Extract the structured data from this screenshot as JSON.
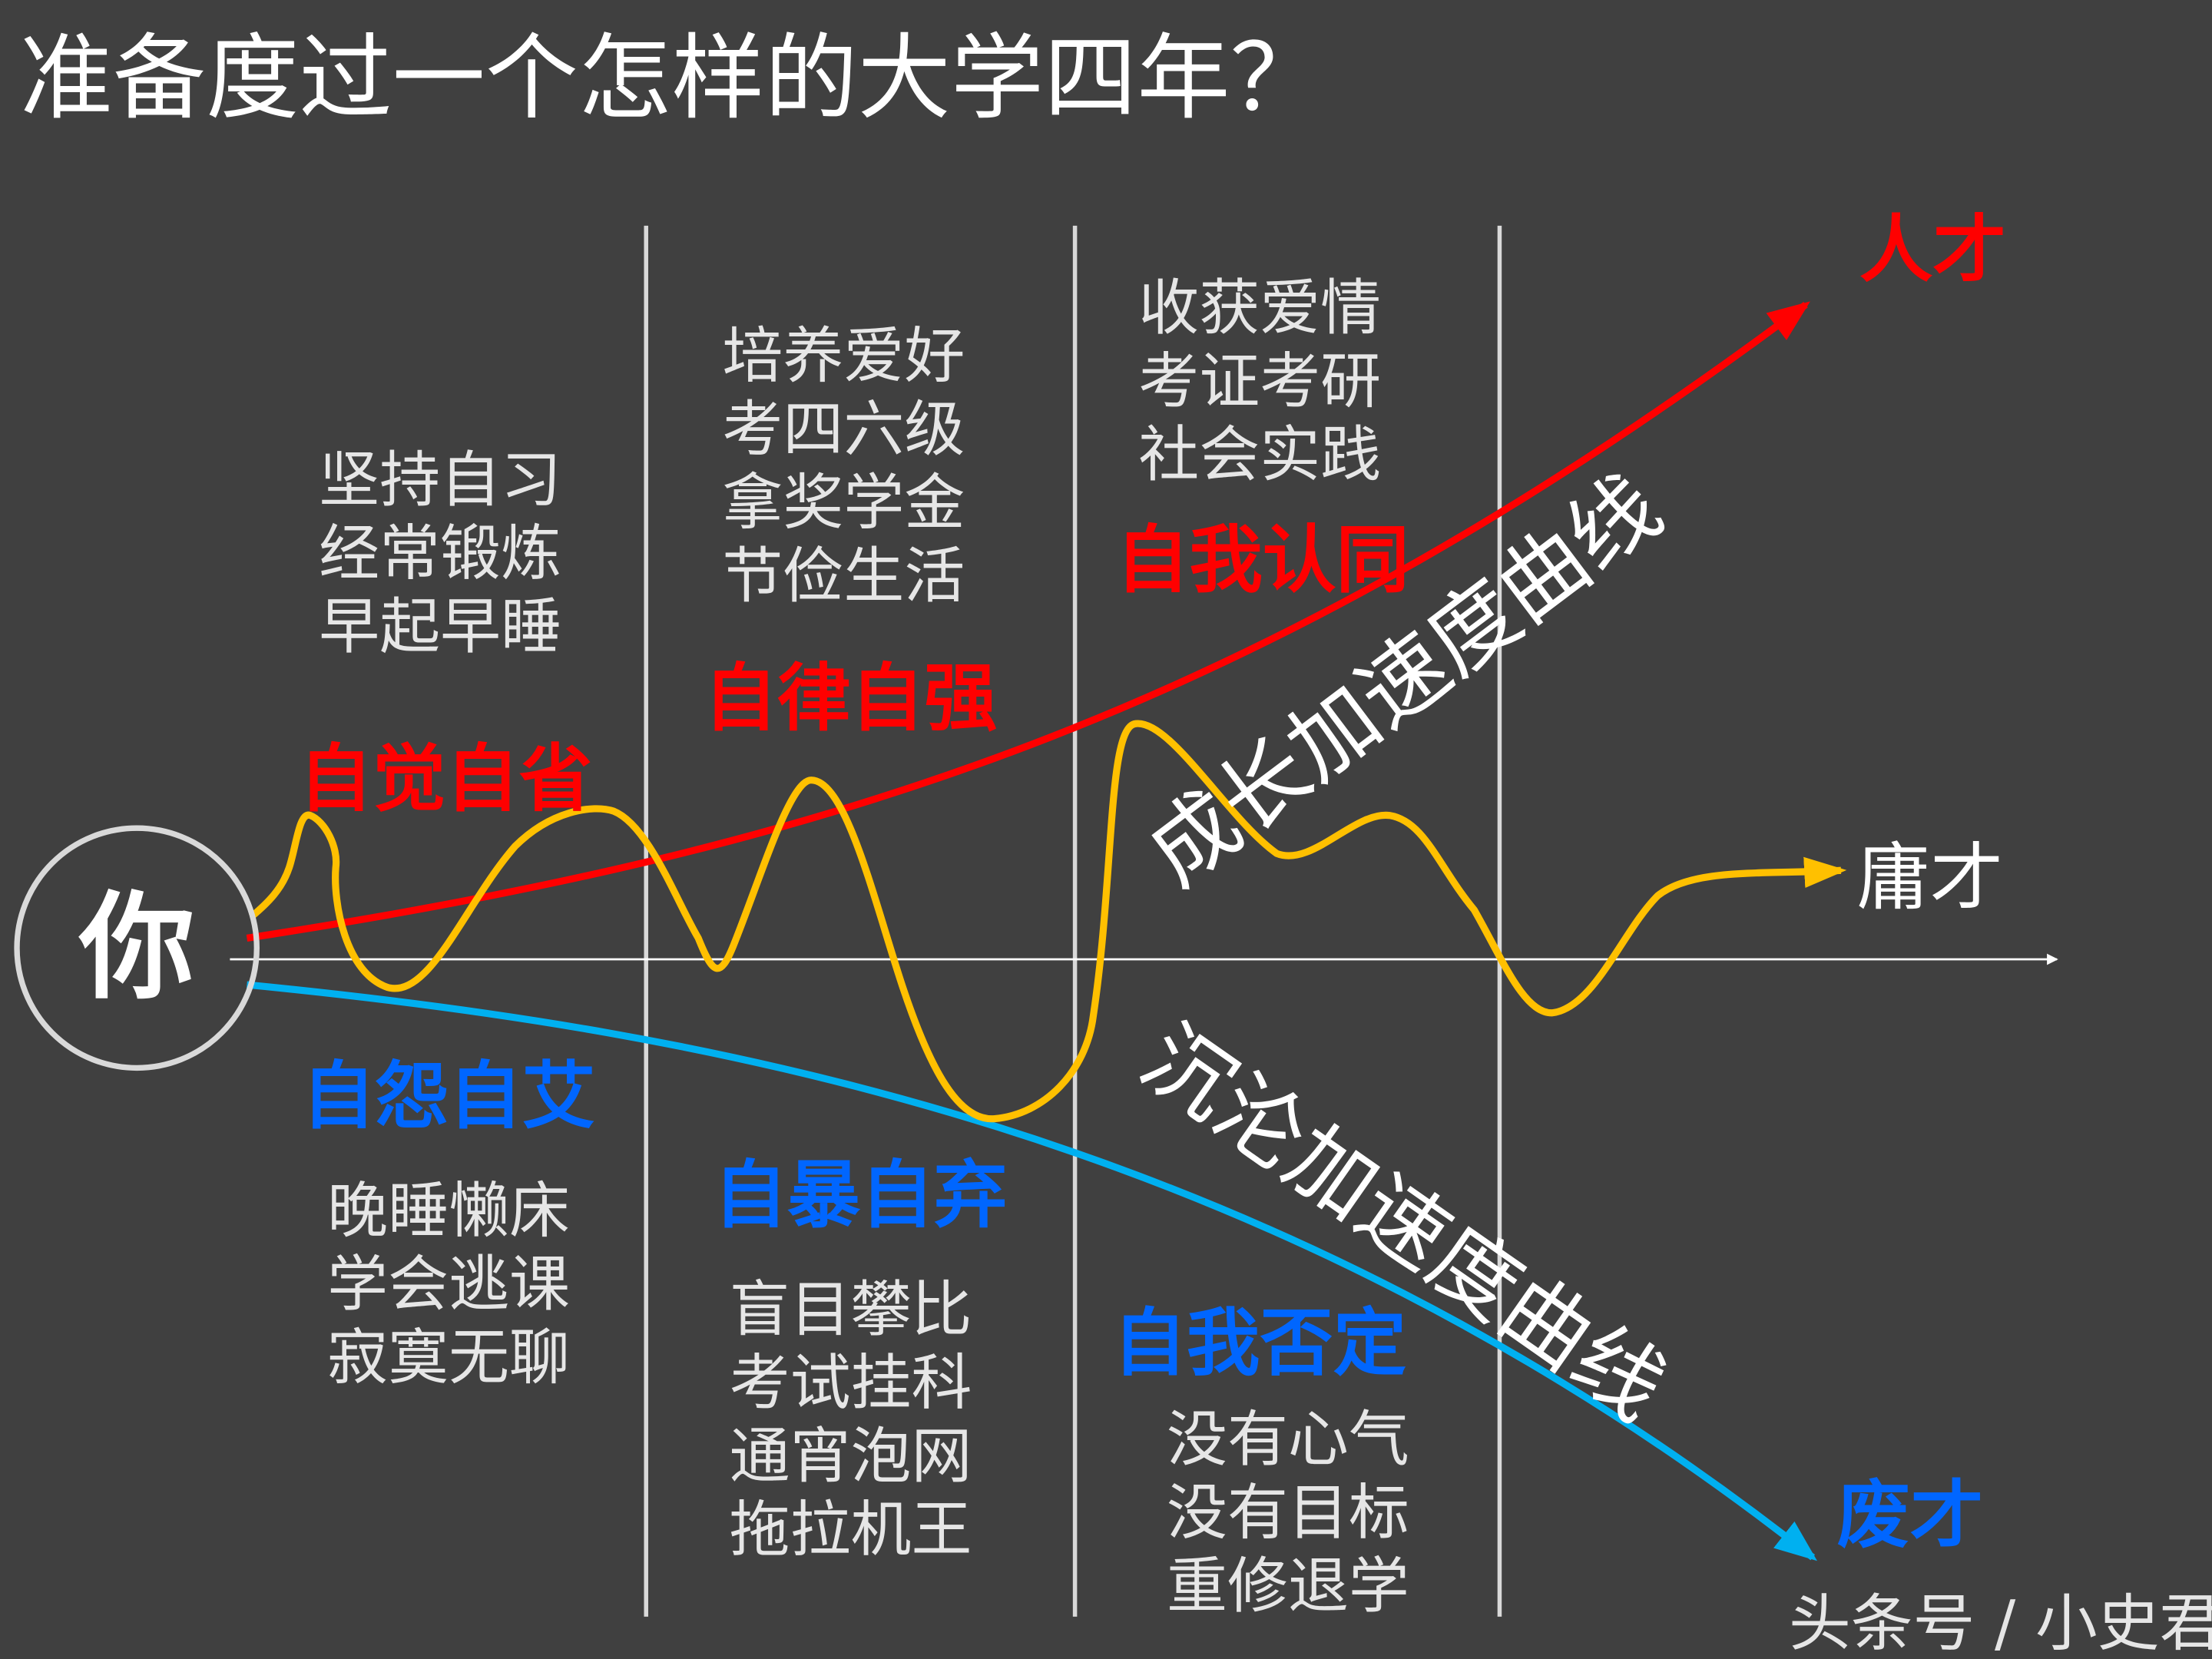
{
  "title": "准备度过一个怎样的大学四年？",
  "center_label": "你",
  "colors": {
    "background": "#404040",
    "growth_curve": "#ff0000",
    "decline_curve": "#00b0f0",
    "actual_curve": "#ffc000",
    "positive_label": "#ff0000",
    "negative_label": "#0066ff",
    "text": "#e6e6e6"
  },
  "outcomes": {
    "top": "人才",
    "middle": "庸才",
    "bottom": "废才"
  },
  "curve_labels": {
    "growth": "成长加速度曲线",
    "decline": "沉沦加速度曲线"
  },
  "stages": [
    {
      "positive_title": "自觉自省",
      "positive_items": [
        "坚持自习",
        "经常锻炼",
        "早起早睡"
      ],
      "negative_title": "自怨自艾",
      "negative_items": [
        "晚睡懒床",
        "学会逃课",
        "寂寞无聊"
      ]
    },
    {
      "positive_title": "自律自强",
      "positive_items": [
        "培养爱好",
        "考四六级",
        "拿奖学金",
        "节俭生活"
      ],
      "negative_title": "自暴自弃",
      "negative_items": [
        "盲目攀比",
        "考试挂科",
        "通宵泡网",
        "拖拉机王"
      ]
    },
    {
      "positive_title": "自我认同",
      "positive_items": [
        "收获爱情",
        "考证考研",
        "社会实践"
      ],
      "negative_title": "自我否定",
      "negative_items": [
        "没有心气",
        "没有目标",
        "重修退学"
      ]
    }
  ],
  "watermark": "头条号 / 小史君"
}
